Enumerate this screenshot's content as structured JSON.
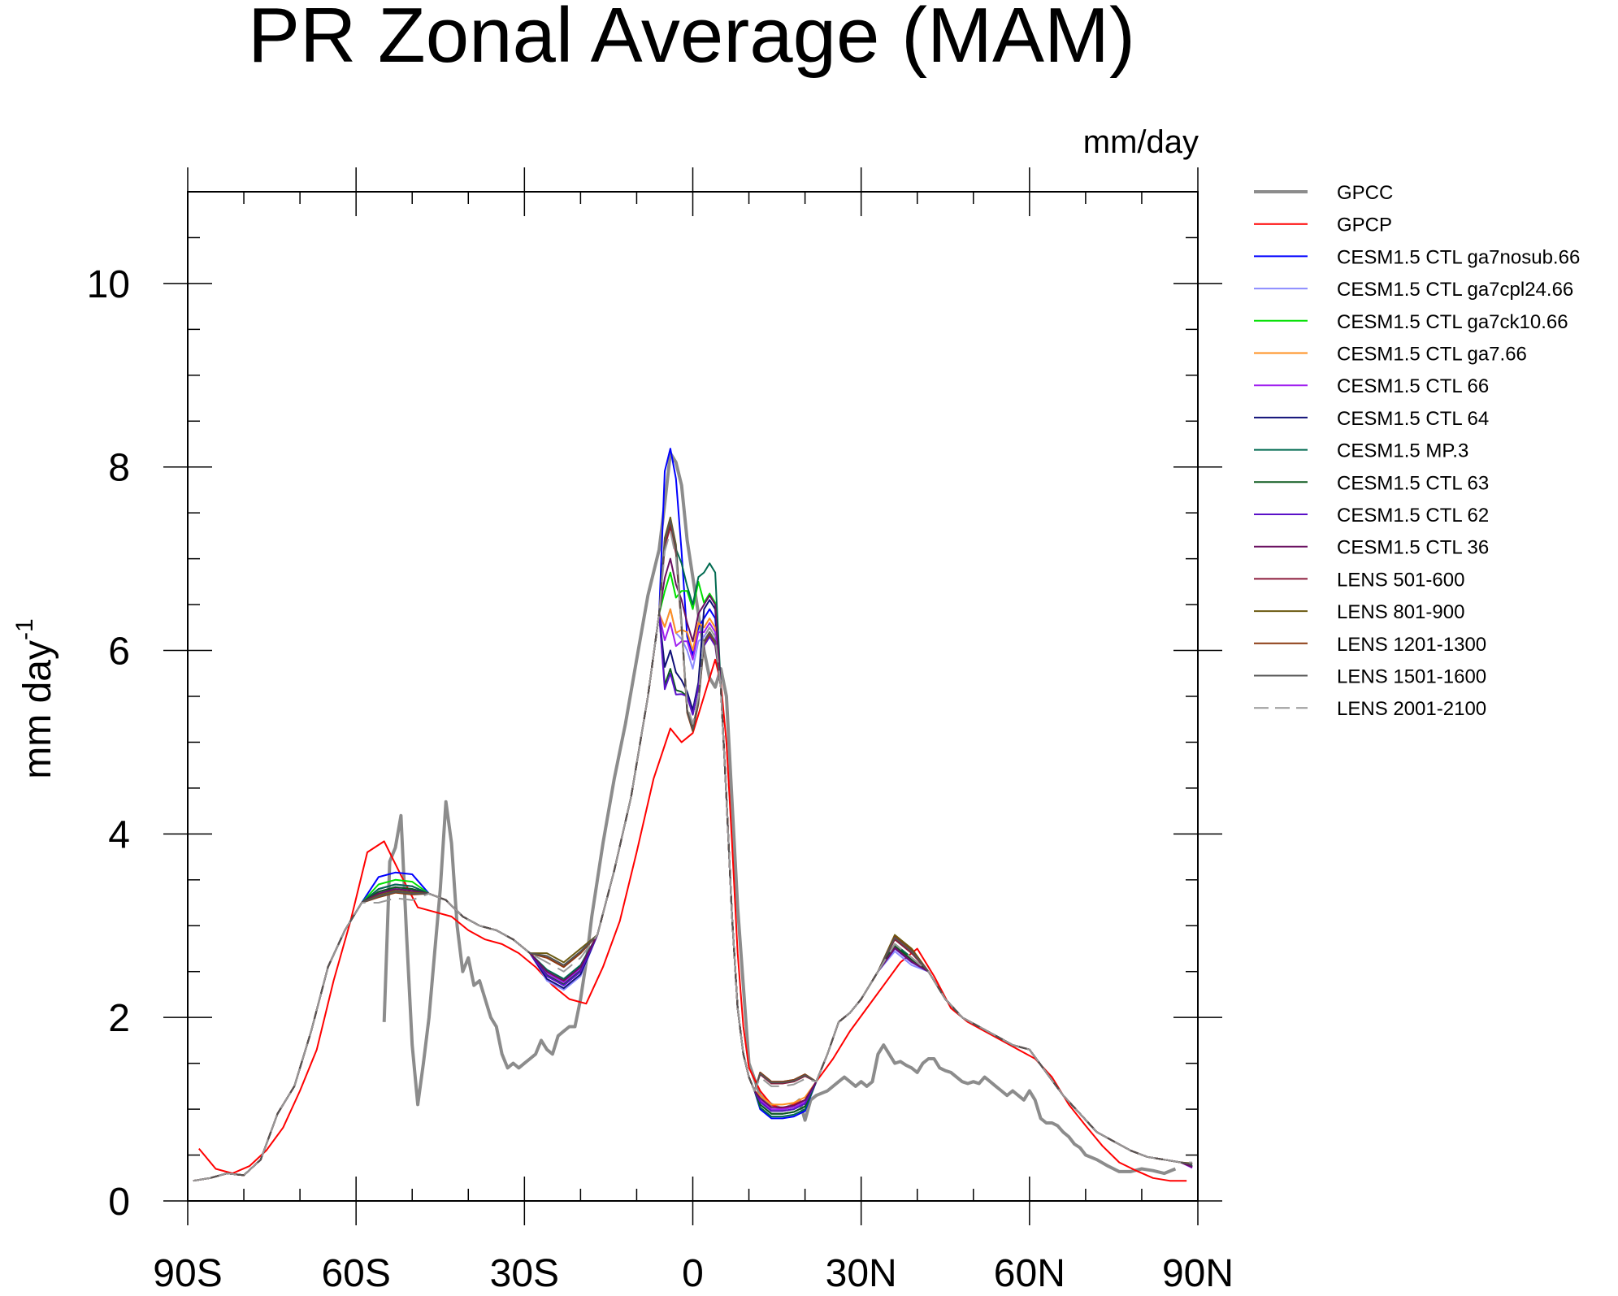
{
  "chart_data": {
    "type": "line",
    "title": "PR Zonal Average (MAM)",
    "units_label": "mm/day",
    "ylabel": "mm day",
    "ylabel_superscript": "-1",
    "xlabel": "",
    "xlim": [
      -90,
      90
    ],
    "ylim": [
      0,
      11
    ],
    "x_ticks": [
      -90,
      -60,
      -30,
      0,
      30,
      60,
      90
    ],
    "x_tick_labels": [
      "90S",
      "60S",
      "30S",
      "0",
      "30N",
      "60N",
      "90N"
    ],
    "y_ticks": [
      0,
      2,
      4,
      6,
      8,
      10
    ],
    "y_tick_labels": [
      "0",
      "2",
      "4",
      "6",
      "8",
      "10"
    ],
    "legend_position": "right",
    "series": [
      {
        "name": "GPCC",
        "color": "#8c8c8c",
        "dash": "solid",
        "width": 4,
        "x": [
          -55,
          -54,
          -53,
          -52,
          -51,
          -50,
          -49,
          -48,
          -47,
          -46,
          -45,
          -44,
          -43,
          -42,
          -41,
          -40,
          -39,
          -38,
          -37,
          -36,
          -35,
          -34,
          -33,
          -32,
          -31,
          -30,
          -29,
          -28,
          -27,
          -26,
          -25,
          -24,
          -23,
          -22,
          -21,
          -20,
          -19,
          -18,
          -16,
          -14,
          -12,
          -10,
          -8,
          -6,
          -5,
          -4,
          -3,
          -2,
          -1,
          0,
          1,
          2,
          3,
          4,
          5,
          6,
          8,
          10,
          12,
          14,
          16,
          18,
          19,
          20,
          21,
          22,
          24,
          26,
          27,
          28,
          29,
          30,
          31,
          32,
          33,
          34,
          35,
          36,
          37,
          38,
          39,
          40,
          41,
          42,
          43,
          44,
          45,
          46,
          47,
          48,
          49,
          50,
          51,
          52,
          53,
          54,
          55,
          56,
          57,
          58,
          59,
          60,
          61,
          62,
          63,
          64,
          65,
          66,
          67,
          68,
          69,
          70,
          72,
          74,
          76,
          78,
          80,
          82,
          84,
          86
        ],
        "y": [
          1.95,
          3.7,
          3.85,
          4.2,
          2.9,
          1.7,
          1.05,
          1.5,
          2.0,
          2.7,
          3.4,
          4.35,
          3.9,
          3.0,
          2.5,
          2.65,
          2.35,
          2.4,
          2.2,
          2.0,
          1.9,
          1.6,
          1.45,
          1.5,
          1.45,
          1.5,
          1.55,
          1.6,
          1.75,
          1.65,
          1.6,
          1.8,
          1.85,
          1.9,
          1.9,
          2.2,
          2.6,
          3.1,
          3.9,
          4.6,
          5.2,
          5.9,
          6.6,
          7.1,
          7.6,
          8.15,
          8.05,
          7.8,
          7.2,
          6.8,
          6.4,
          6.0,
          5.7,
          5.6,
          5.8,
          5.5,
          3.2,
          1.5,
          1.15,
          1.05,
          1.0,
          1.05,
          1.1,
          0.88,
          1.1,
          1.15,
          1.2,
          1.3,
          1.35,
          1.3,
          1.25,
          1.3,
          1.25,
          1.3,
          1.6,
          1.7,
          1.6,
          1.5,
          1.52,
          1.48,
          1.45,
          1.4,
          1.5,
          1.55,
          1.55,
          1.45,
          1.42,
          1.4,
          1.35,
          1.3,
          1.28,
          1.3,
          1.28,
          1.35,
          1.3,
          1.25,
          1.2,
          1.15,
          1.2,
          1.15,
          1.1,
          1.2,
          1.1,
          0.9,
          0.85,
          0.85,
          0.82,
          0.75,
          0.7,
          0.62,
          0.58,
          0.5,
          0.45,
          0.38,
          0.32,
          0.32,
          0.35,
          0.33,
          0.3,
          0.35
        ]
      },
      {
        "name": "GPCP",
        "color": "#ff0000",
        "dash": "solid",
        "width": 2,
        "x": [
          -88,
          -85,
          -82,
          -79,
          -76,
          -73,
          -70,
          -67,
          -64,
          -61,
          -58,
          -55,
          -52,
          -49,
          -46,
          -43,
          -40,
          -37,
          -34,
          -31,
          -28,
          -25,
          -22,
          -19,
          -16,
          -13,
          -10,
          -7,
          -4,
          -2,
          0,
          2,
          4,
          5,
          6,
          7,
          8,
          9,
          10,
          12,
          14,
          16,
          18,
          20,
          22,
          25,
          28,
          31,
          34,
          37,
          40,
          43,
          46,
          49,
          52,
          55,
          58,
          61,
          64,
          67,
          70,
          73,
          76,
          79,
          82,
          85,
          88
        ],
        "y": [
          0.57,
          0.35,
          0.3,
          0.38,
          0.55,
          0.8,
          1.2,
          1.65,
          2.4,
          3.05,
          3.8,
          3.92,
          3.55,
          3.2,
          3.15,
          3.1,
          2.95,
          2.85,
          2.8,
          2.7,
          2.55,
          2.35,
          2.2,
          2.15,
          2.55,
          3.05,
          3.8,
          4.6,
          5.15,
          5.0,
          5.1,
          5.5,
          5.9,
          5.65,
          5.0,
          3.9,
          2.7,
          1.9,
          1.45,
          1.2,
          1.05,
          1.0,
          1.05,
          1.1,
          1.3,
          1.55,
          1.85,
          2.1,
          2.35,
          2.6,
          2.75,
          2.45,
          2.1,
          1.95,
          1.85,
          1.75,
          1.65,
          1.55,
          1.35,
          1.05,
          0.82,
          0.6,
          0.42,
          0.33,
          0.25,
          0.22,
          0.22
        ]
      },
      {
        "name": "CESM1.5 CTL ga7nosub.66",
        "color": "#0000ff",
        "dash": "solid",
        "width": 2,
        "profile": {
          "peak_s": 8.2,
          "peak_n": 6.45,
          "dip": 5.95,
          "troughs": 2.35,
          "sh_max": 3.58,
          "nh_max": 2.8,
          "nh_low": 0.9,
          "np": 0.4
        }
      },
      {
        "name": "CESM1.5 CTL ga7cpl24.66",
        "color": "#8c8cff",
        "dash": "solid",
        "width": 2,
        "profile": {
          "peak_s": 6.45,
          "peak_n": 6.25,
          "dip": 5.8,
          "troughs": 2.3,
          "sh_max": 3.45,
          "nh_max": 2.72,
          "nh_low": 0.98,
          "np": 0.38
        }
      },
      {
        "name": "CESM1.5 CTL ga7ck10.66",
        "color": "#00e000",
        "dash": "solid",
        "width": 2,
        "profile": {
          "peak_s": 6.85,
          "peak_n": 6.62,
          "dip": 6.45,
          "troughs": 2.4,
          "sh_max": 3.5,
          "nh_max": 2.8,
          "nh_low": 0.98,
          "np": 0.38
        }
      },
      {
        "name": "CESM1.5 CTL ga7.66",
        "color": "#ff9020",
        "dash": "solid",
        "width": 2,
        "profile": {
          "peak_s": 6.45,
          "peak_n": 6.35,
          "dip": 6.0,
          "troughs": 2.4,
          "sh_max": 3.45,
          "nh_max": 2.8,
          "nh_low": 1.05,
          "np": 0.38
        }
      },
      {
        "name": "CESM1.5 CTL 66",
        "color": "#a020f0",
        "dash": "solid",
        "width": 2,
        "profile": {
          "peak_s": 6.3,
          "peak_n": 6.3,
          "dip": 5.9,
          "troughs": 2.38,
          "sh_max": 3.45,
          "nh_max": 2.78,
          "nh_low": 1.0,
          "np": 0.36
        }
      },
      {
        "name": "CESM1.5 CTL 64",
        "color": "#101078",
        "dash": "solid",
        "width": 2,
        "profile": {
          "peak_s": 6.0,
          "peak_n": 6.55,
          "dip": 5.35,
          "troughs": 2.32,
          "sh_max": 3.42,
          "nh_max": 2.78,
          "nh_low": 0.95,
          "np": 0.38
        }
      },
      {
        "name": "CESM1.5 MP.3",
        "color": "#006a50",
        "dash": "solid",
        "width": 2,
        "profile": {
          "peak_s": 7.4,
          "peak_n": 6.95,
          "dip": 6.5,
          "troughs": 2.42,
          "sh_max": 3.45,
          "nh_max": 2.8,
          "nh_low": 0.92,
          "np": 0.38
        }
      },
      {
        "name": "CESM1.5 CTL 63",
        "color": "#0c5a1e",
        "dash": "solid",
        "width": 2,
        "profile": {
          "peak_s": 5.8,
          "peak_n": 6.2,
          "dip": 5.3,
          "troughs": 2.36,
          "sh_max": 3.42,
          "nh_max": 2.78,
          "nh_low": 0.95,
          "np": 0.37
        }
      },
      {
        "name": "CESM1.5 CTL 62",
        "color": "#5a10c8",
        "dash": "solid",
        "width": 2,
        "profile": {
          "peak_s": 5.75,
          "peak_n": 6.15,
          "dip": 5.3,
          "troughs": 2.35,
          "sh_max": 3.4,
          "nh_max": 2.75,
          "nh_low": 0.98,
          "np": 0.37
        }
      },
      {
        "name": "CESM1.5 CTL 36",
        "color": "#6a1060",
        "dash": "solid",
        "width": 2,
        "profile": {
          "peak_s": 7.0,
          "peak_n": 6.6,
          "dip": 6.1,
          "troughs": 2.4,
          "sh_max": 3.4,
          "nh_max": 2.76,
          "nh_low": 1.02,
          "np": 0.37
        }
      },
      {
        "name": "LENS 501-600",
        "color": "#8b1a3a",
        "dash": "solid",
        "width": 2,
        "profile": {
          "peak_s": 7.35,
          "peak_n": 6.2,
          "dip": 5.15,
          "troughs": 2.55,
          "sh_max": 3.38,
          "nh_max": 2.85,
          "nh_low": 1.28,
          "np": 0.4
        }
      },
      {
        "name": "LENS 801-900",
        "color": "#6b5a10",
        "dash": "solid",
        "width": 2,
        "profile": {
          "peak_s": 7.45,
          "peak_n": 6.2,
          "dip": 5.15,
          "troughs": 2.6,
          "sh_max": 3.38,
          "nh_max": 2.9,
          "nh_low": 1.3,
          "np": 0.41
        }
      },
      {
        "name": "LENS 1201-1300",
        "color": "#8b3a10",
        "dash": "solid",
        "width": 2,
        "profile": {
          "peak_s": 7.4,
          "peak_n": 6.18,
          "dip": 5.12,
          "troughs": 2.55,
          "sh_max": 3.36,
          "nh_max": 2.88,
          "nh_low": 1.3,
          "np": 0.4
        }
      },
      {
        "name": "LENS 1501-1600",
        "color": "#555555",
        "dash": "solid",
        "width": 2,
        "profile": {
          "peak_s": 7.42,
          "peak_n": 6.2,
          "dip": 5.14,
          "troughs": 2.57,
          "sh_max": 3.37,
          "nh_max": 2.87,
          "nh_low": 1.29,
          "np": 0.4
        }
      },
      {
        "name": "LENS 2001-2100",
        "color": "#999999",
        "dash": "dashed",
        "width": 2,
        "profile": {
          "peak_s": 7.3,
          "peak_n": 6.25,
          "dip": 5.2,
          "troughs": 2.5,
          "sh_max": 3.3,
          "nh_max": 2.8,
          "nh_low": 1.25,
          "np": 0.42
        }
      }
    ]
  }
}
